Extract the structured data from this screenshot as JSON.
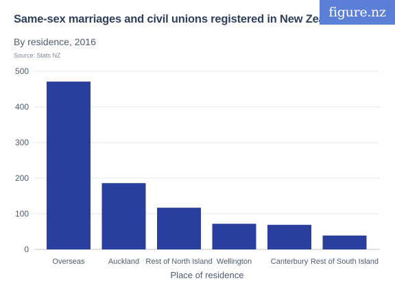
{
  "logo_text": "figure.nz",
  "chart_data": {
    "type": "bar",
    "title": "Same-sex marriages and civil unions registered in New Zealand",
    "subtitle": "By residence, 2016",
    "source": "Source: Stats NZ",
    "xlabel": "Place of residence",
    "ylabel": "",
    "categories": [
      "Overseas",
      "Auckland",
      "Rest of North Island",
      "Wellington",
      "Canterbury",
      "Rest of South Island"
    ],
    "values": [
      471,
      186,
      117,
      72,
      69,
      39
    ],
    "ylim": [
      0,
      500
    ],
    "yticks": [
      0,
      100,
      200,
      300,
      400,
      500
    ],
    "grid": true,
    "bar_color": "#2a3f9d"
  }
}
